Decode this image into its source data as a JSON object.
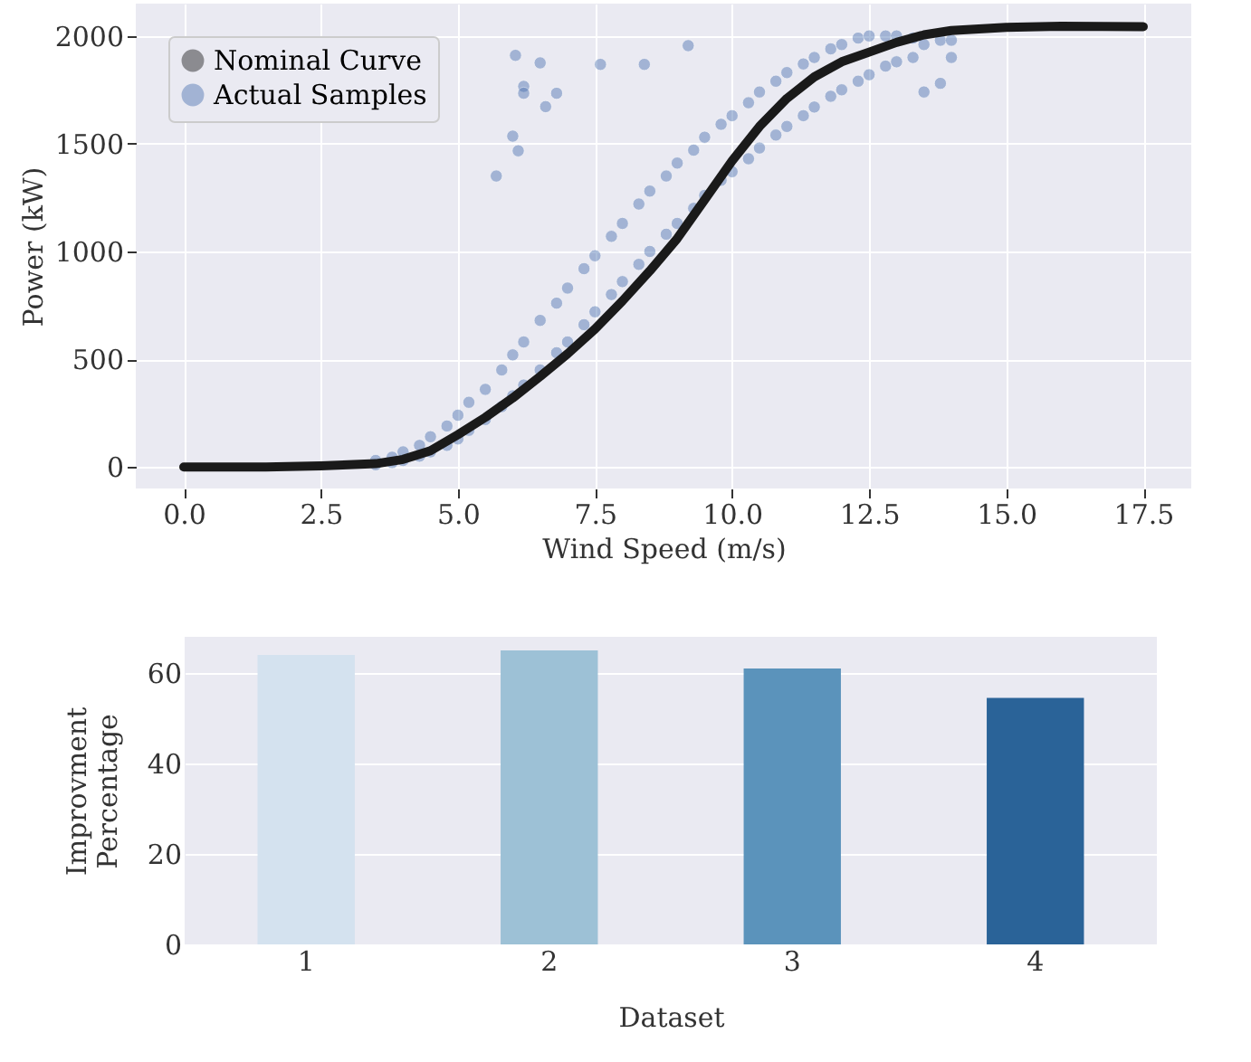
{
  "chart_data": [
    {
      "type": "scatter",
      "xlabel": "Wind Speed (m/s)",
      "ylabel": "Power (kW)",
      "xlim": [
        -0.875,
        18.375
      ],
      "ylim": [
        -100,
        2150
      ],
      "xticks": [
        {
          "value": 0,
          "label": "0.0"
        },
        2.5,
        {
          "value": 5,
          "label": "5.0"
        },
        7.5,
        {
          "value": 10,
          "label": "10.0"
        },
        12.5,
        {
          "value": 15,
          "label": "15.0"
        },
        17.5
      ],
      "yticks": [
        0,
        500,
        1000,
        1500,
        2000
      ],
      "grid": true,
      "legend": "top left",
      "series": [
        {
          "name": "Nominal Curve",
          "type": "line",
          "color": "#1a1a1a",
          "x": [
            0,
            1.5,
            2.5,
            3.5,
            4,
            4.5,
            5,
            5.5,
            6,
            6.5,
            7,
            7.5,
            8,
            8.5,
            9,
            9.5,
            10,
            10.5,
            11,
            11.5,
            12,
            12.5,
            13,
            13.5,
            14,
            15,
            16,
            17.5
          ],
          "values": [
            0,
            0,
            5,
            15,
            35,
            75,
            150,
            230,
            320,
            420,
            525,
            640,
            770,
            910,
            1060,
            1240,
            1420,
            1580,
            1710,
            1810,
            1880,
            1925,
            1970,
            2005,
            2025,
            2040,
            2045,
            2043
          ]
        },
        {
          "name": "Actual Samples",
          "type": "scatter",
          "color": "#4c72b0",
          "x": [
            3.5,
            3.5,
            3.8,
            3.8,
            4.0,
            4.0,
            4.3,
            4.3,
            4.5,
            4.5,
            4.8,
            4.8,
            5.0,
            5.0,
            5.2,
            5.2,
            5.5,
            5.5,
            5.8,
            5.8,
            6.0,
            6.0,
            6.2,
            6.2,
            6.5,
            6.5,
            6.8,
            6.8,
            7.0,
            7.0,
            7.3,
            7.3,
            7.5,
            7.5,
            7.8,
            7.8,
            8.0,
            8.0,
            8.3,
            8.3,
            8.5,
            8.5,
            8.8,
            8.8,
            9.0,
            9.0,
            9.3,
            9.3,
            9.5,
            9.5,
            9.8,
            9.8,
            10.0,
            10.0,
            10.3,
            10.3,
            10.5,
            10.5,
            10.8,
            10.8,
            11.0,
            11.0,
            11.3,
            11.3,
            11.5,
            11.5,
            11.8,
            11.8,
            12.0,
            12.0,
            12.3,
            12.3,
            12.5,
            12.5,
            12.8,
            12.8,
            13.0,
            13.0,
            13.3,
            13.3,
            13.5,
            13.5,
            13.8,
            13.8,
            14.0,
            14.0,
            5.7,
            6.0,
            6.1,
            6.05,
            6.2,
            6.2,
            6.5,
            6.6,
            6.8,
            7.6,
            8.4,
            9.2
          ],
          "values": [
            10,
            30,
            20,
            45,
            30,
            70,
            50,
            100,
            70,
            140,
            100,
            190,
            130,
            240,
            170,
            300,
            220,
            360,
            280,
            450,
            330,
            520,
            380,
            580,
            450,
            680,
            530,
            760,
            580,
            830,
            660,
            920,
            720,
            980,
            800,
            1070,
            860,
            1130,
            940,
            1220,
            1000,
            1280,
            1080,
            1350,
            1130,
            1410,
            1200,
            1470,
            1260,
            1530,
            1330,
            1590,
            1370,
            1630,
            1430,
            1690,
            1480,
            1740,
            1540,
            1790,
            1580,
            1830,
            1630,
            1870,
            1670,
            1900,
            1720,
            1940,
            1750,
            1960,
            1790,
            1990,
            1820,
            2000,
            1860,
            2000,
            1880,
            2000,
            1900,
            1990,
            1740,
            1960,
            1780,
            1980,
            1900,
            1980,
            1350,
            1535,
            1467,
            1910,
            1766,
            1734,
            1875,
            1672,
            1734,
            1868,
            1868,
            1955
          ]
        }
      ]
    },
    {
      "type": "bar",
      "xlabel": "Dataset",
      "ylabel": "Improvment Percentage",
      "categories": [
        "1",
        "2",
        "3",
        "4"
      ],
      "values": [
        64,
        65,
        61,
        54.5
      ],
      "colors": [
        "#d4e2ef",
        "#9dc1d6",
        "#5b93bb",
        "#2a6398"
      ],
      "ylim": [
        0,
        68
      ],
      "yticks": [
        0,
        20,
        40,
        60
      ],
      "grid": "y"
    }
  ]
}
